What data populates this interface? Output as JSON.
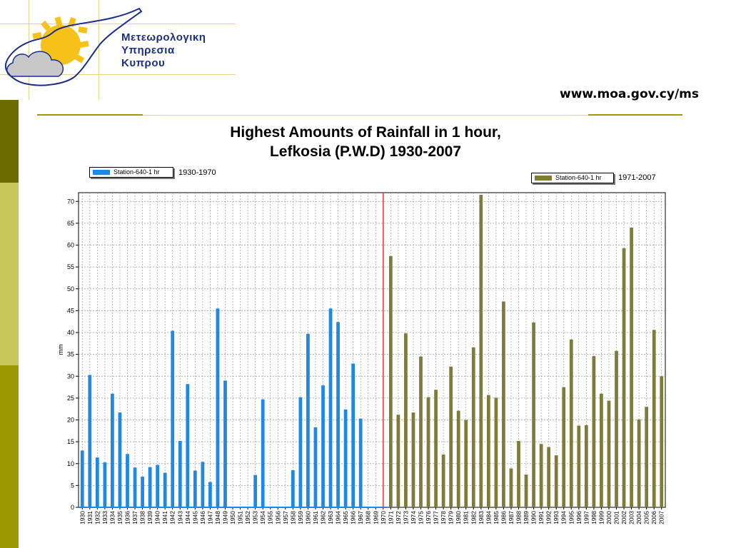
{
  "header": {
    "org_line1": "Μετεωρολογικη",
    "org_line2": "Υπηρεσια",
    "org_line3": "Κυπρου",
    "url": "www.moa.gov.cy/ms"
  },
  "colors": {
    "series1": "#1e88e5",
    "series2": "#7f7b3a",
    "divider": "#e53935",
    "side_dark": "#6b6b00",
    "side_light": "#c8c85a",
    "side_mid": "#9a9a00"
  },
  "chart_data": {
    "type": "bar",
    "title_line1": "Highest Amounts of Rainfall in 1 hour,",
    "title_line2": "Lefkosia (P.W.D) 1930-2007",
    "ylabel": "mm",
    "xlabel": "",
    "ylim": [
      0,
      72
    ],
    "yticks": [
      0,
      5,
      10,
      15,
      20,
      25,
      30,
      35,
      40,
      45,
      50,
      55,
      60,
      65,
      70
    ],
    "grid": true,
    "divider_at": "1970",
    "categories": [
      "1930",
      "1931",
      "1932",
      "1933",
      "1934",
      "1935",
      "1936",
      "1937",
      "1938",
      "1939",
      "1940",
      "1941",
      "1942",
      "1943",
      "1944",
      "1945",
      "1946",
      "1947",
      "1948",
      "1949",
      "1950",
      "1951",
      "1952",
      "1953",
      "1954",
      "1955",
      "1956",
      "1957",
      "1958",
      "1959",
      "1960",
      "1961",
      "1962",
      "1963",
      "1964",
      "1965",
      "1966",
      "1967",
      "1968",
      "1969",
      "1970",
      "1971",
      "1972",
      "1973",
      "1974",
      "1975",
      "1976",
      "1977",
      "1978",
      "1979",
      "1980",
      "1981",
      "1982",
      "1983",
      "1984",
      "1985",
      "1986",
      "1987",
      "1988",
      "1989",
      "1990",
      "1991",
      "1992",
      "1993",
      "1994",
      "1995",
      "1996",
      "1997",
      "1998",
      "1999",
      "2000",
      "2001",
      "2002",
      "2003",
      "2004",
      "2005",
      "2006",
      "2007"
    ],
    "series": [
      {
        "name": "Station-640-1 hr",
        "period": "1930-1970",
        "legend_position": "top-left",
        "values": [
          13,
          30.3,
          11.4,
          10.3,
          26,
          21.7,
          12.2,
          9.1,
          7,
          9.2,
          9.7,
          7.9,
          40.4,
          15.2,
          28.2,
          8.4,
          10.4,
          5.8,
          45.5,
          29,
          0,
          0,
          0,
          7.4,
          24.7,
          0,
          0,
          0,
          8.5,
          25.2,
          39.7,
          18.3,
          27.9,
          45.5,
          42.4,
          22.4,
          32.9,
          20.3,
          0,
          0,
          0,
          null,
          null,
          null,
          null,
          null,
          null,
          null,
          null,
          null,
          null,
          null,
          null,
          null,
          null,
          null,
          null,
          null,
          null,
          null,
          null,
          null,
          null,
          null,
          null,
          null,
          null,
          null,
          null,
          null,
          null,
          null,
          null,
          null,
          null,
          null,
          null,
          null
        ]
      },
      {
        "name": "Station-640-1 hr",
        "period": "1971-2007",
        "legend_position": "top-right",
        "values": [
          null,
          null,
          null,
          null,
          null,
          null,
          null,
          null,
          null,
          null,
          null,
          null,
          null,
          null,
          null,
          null,
          null,
          null,
          null,
          null,
          null,
          null,
          null,
          null,
          null,
          null,
          null,
          null,
          null,
          null,
          null,
          null,
          null,
          null,
          null,
          null,
          null,
          null,
          null,
          null,
          null,
          57.5,
          21.2,
          39.8,
          21.7,
          34.5,
          25.2,
          26.9,
          12.1,
          32.2,
          22.1,
          20,
          36.6,
          71.5,
          25.7,
          25.1,
          47.1,
          8.9,
          15.2,
          7.5,
          42.3,
          14.5,
          13.8,
          11.9,
          27.5,
          38.4,
          18.7,
          18.8,
          34.6,
          26,
          24.4,
          35.8,
          59.3,
          64,
          20.1,
          23,
          40.6,
          30
        ]
      }
    ]
  }
}
